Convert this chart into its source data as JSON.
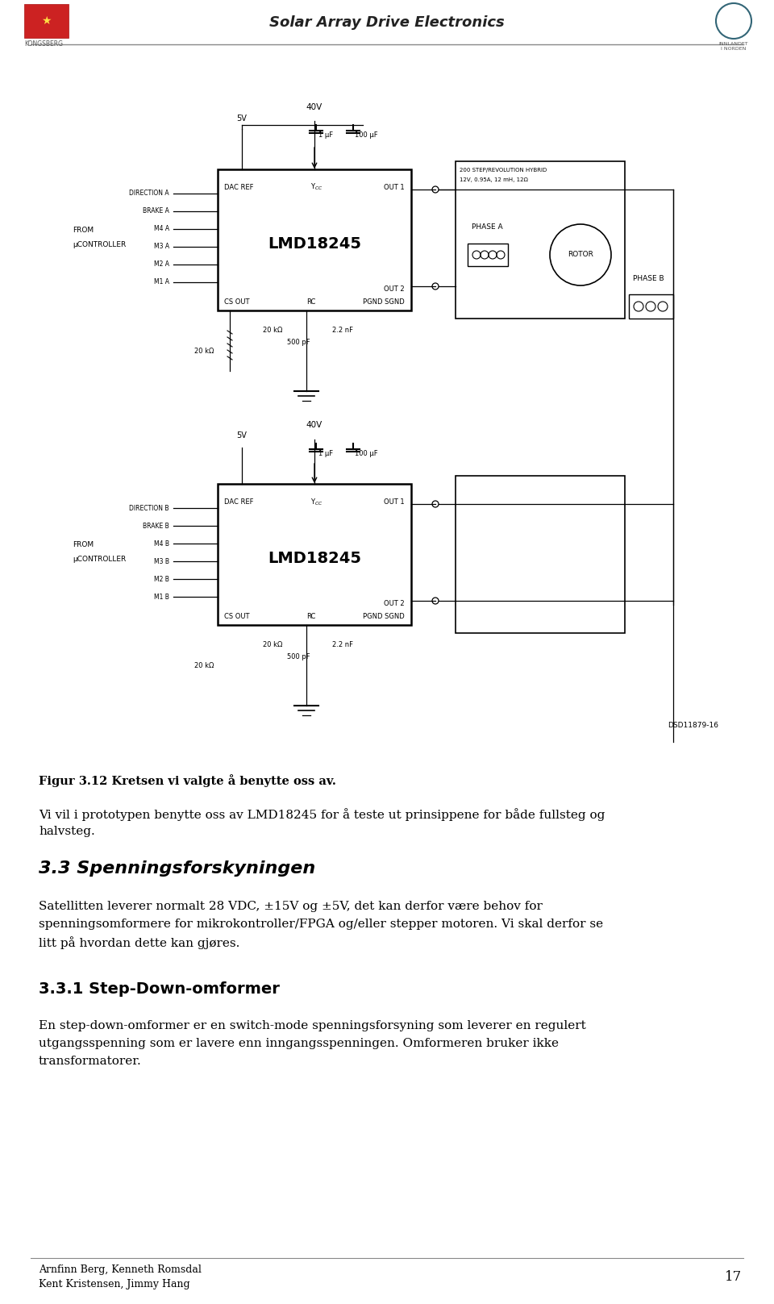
{
  "title": "Solar Array Drive Electronics",
  "page_number": "17",
  "footer_authors_line1": "Arnfinn Berg, Kenneth Romsdal",
  "footer_authors_line2": "Kent Kristensen, Jimmy Hang",
  "fig_caption": "Figur 3.12 Kretsen vi valgte å benytte oss av.",
  "para1_line1": "Vi vil i prototypen benytte oss av LMD18245 for å teste ut prinsippene for både fullsteg og",
  "para1_line2": "halvsteg.",
  "section_heading": "3.3 Spenningsforskyningen",
  "para2_line1": "Satellitten leverer normalt 28 VDC, ±15V og ±5V, det kan derfor være behov for",
  "para2_line2": "spenningsomformere for mikrokontroller/FPGA og/eller stepper motoren. Vi skal derfor se",
  "para2_line3": "litt på hvordan dette kan gjøres.",
  "subsection_heading": "3.3.1 Step-Down-omformer",
  "para3_line1": "En step-down-omformer er en switch-mode spenningsforsyning som leverer en regulert",
  "para3_line2": "utgangsspenning som er lavere enn inngangsspenningen. Omformeren bruker ikke",
  "para3_line3": "transformatorer.",
  "bg_color": "#ffffff",
  "text_color": "#000000",
  "circuit_ref": "DSD11879-16",
  "motor_spec": "200 STEP/REVOLUTION HYBRID",
  "motor_spec2": "12V, 0.95A, 12 mH, 12Ω"
}
